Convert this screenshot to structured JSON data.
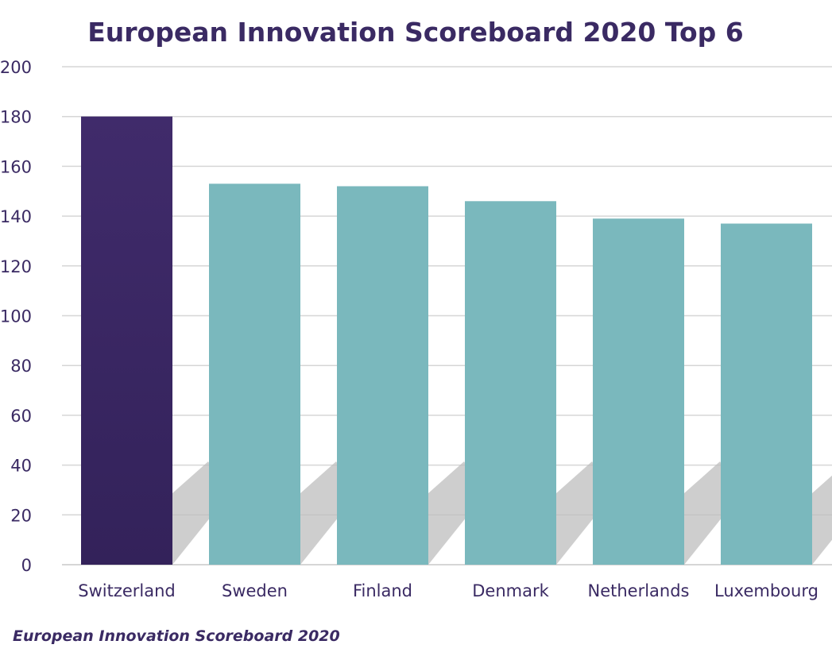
{
  "colors": {
    "text": "#3a2a63",
    "highlight_bar": "#3a2760",
    "bar": "#7ab8bd",
    "grid": "#d6d6d6",
    "shadow": "#bdbdbd"
  },
  "chart_data": {
    "type": "bar",
    "title": "European Innovation Scoreboard 2020 Top 6",
    "categories": [
      "Switzerland",
      "Sweden",
      "Finland",
      "Denmark",
      "Netherlands",
      "Luxembourg"
    ],
    "values": [
      180,
      153,
      152,
      146,
      139,
      137
    ],
    "highlighted_category": "Switzerland",
    "ylim": [
      0,
      200
    ],
    "yticks": [
      0,
      20,
      40,
      60,
      80,
      100,
      120,
      140,
      160,
      180,
      200
    ],
    "xlabel": "",
    "ylabel": "",
    "grid": true,
    "legend": "none"
  },
  "source": "European Innovation Scoreboard 2020"
}
